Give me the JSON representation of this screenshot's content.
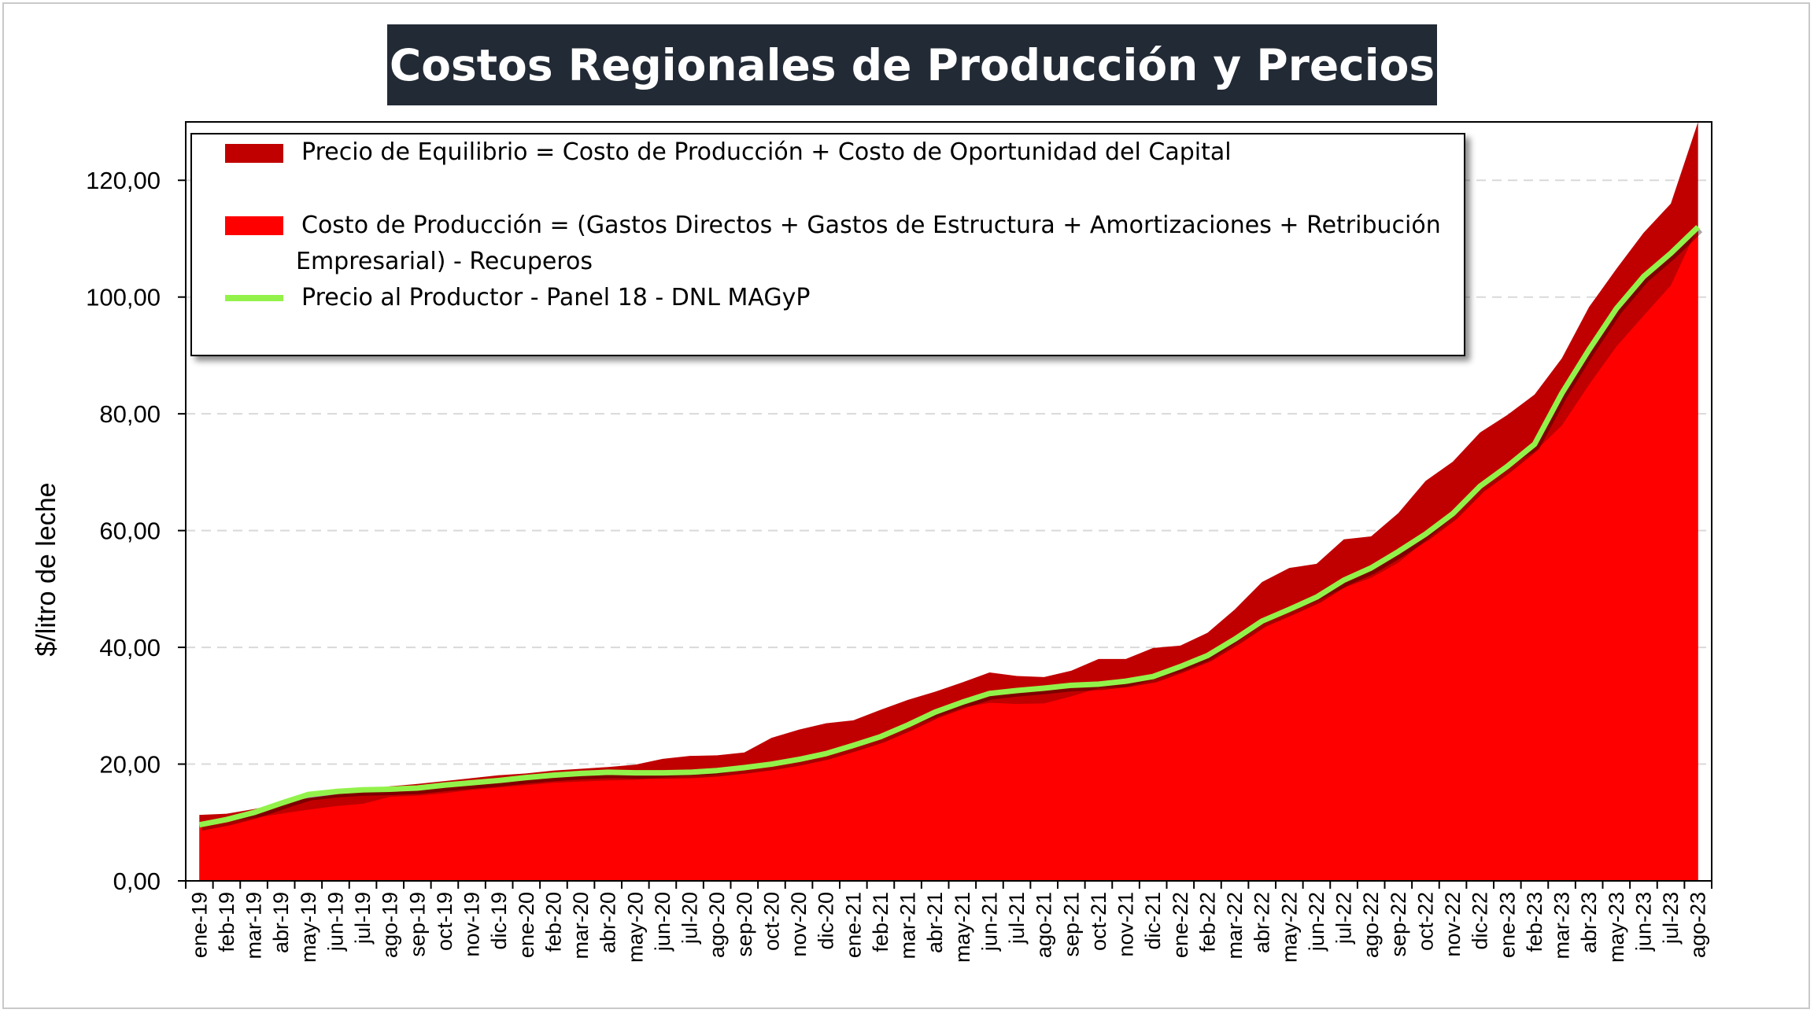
{
  "title": "Costos Regionales de Producción y Precios",
  "chart_data": {
    "type": "area",
    "ylabel": "$/litro de leche",
    "xlabel": "",
    "ylim": [
      0,
      130
    ],
    "yticks": [
      "0,00",
      "20,00",
      "40,00",
      "60,00",
      "80,00",
      "100,00",
      "120,00"
    ],
    "ytick_values": [
      0,
      20,
      40,
      60,
      80,
      100,
      120
    ],
    "grid": "horizontal dashed",
    "legend_position": "top-left inside",
    "categories": [
      "ene-19",
      "feb-19",
      "mar-19",
      "abr-19",
      "may-19",
      "jun-19",
      "jul-19",
      "ago-19",
      "sep-19",
      "oct-19",
      "nov-19",
      "dic-19",
      "ene-20",
      "feb-20",
      "mar-20",
      "abr-20",
      "may-20",
      "jun-20",
      "jul-20",
      "ago-20",
      "sep-20",
      "oct-20",
      "nov-20",
      "dic-20",
      "ene-21",
      "feb-21",
      "mar-21",
      "abr-21",
      "may-21",
      "jun-21",
      "jul-21",
      "ago-21",
      "sep-21",
      "oct-21",
      "nov-21",
      "dic-21",
      "ene-22",
      "feb-22",
      "mar-22",
      "abr-22",
      "may-22",
      "jun-22",
      "jul-22",
      "ago-22",
      "sep-22",
      "oct-22",
      "nov-22",
      "dic-22",
      "ene-23",
      "feb-23",
      "mar-23",
      "abr-23",
      "may-23",
      "jun-23",
      "jul-23",
      "ago-23"
    ],
    "series": [
      {
        "name": "Precio de Equilibrio = Costo de Producción + Costo de Oportunidad del Capital",
        "color": "#c00000",
        "values": [
          11.3,
          11.5,
          12.3,
          13.3,
          14.2,
          14.8,
          15.6,
          16.2,
          16.6,
          17.1,
          17.6,
          18.1,
          18.4,
          18.9,
          19.2,
          19.5,
          19.9,
          20.9,
          21.4,
          21.5,
          22,
          24.5,
          25.9,
          27.0,
          27.5,
          29.3,
          31,
          32.4,
          34,
          35.7,
          35.1,
          34.9,
          36.0,
          38.0,
          38.0,
          39.9,
          40.3,
          42.5,
          46.5,
          51.2,
          53.6,
          54.3,
          58.5,
          59.0,
          63.0,
          68.5,
          71.8,
          76.8,
          79.8,
          83.3,
          89.5,
          98.3,
          104.8,
          111.0,
          116.0,
          130.0
        ]
      },
      {
        "name": "Costo de Producción = (Gastos Directos + Gastos de Estructura + Amortizaciones + Retribución Empresarial) - Recuperos",
        "color": "#ff0000",
        "values": [
          9.8,
          10.1,
          10.8,
          11.5,
          12.2,
          12.8,
          13.2,
          14.4,
          14.6,
          15.0,
          15.6,
          16.0,
          16.4,
          16.8,
          17.0,
          17.2,
          17.3,
          17.7,
          18.0,
          18.2,
          19.1,
          20.0,
          21.0,
          22.2,
          23.4,
          24.8,
          26.4,
          28.0,
          29.7,
          30.5,
          30.3,
          30.4,
          31.6,
          33.0,
          33.2,
          34.4,
          35.8,
          37.6,
          40.6,
          43.9,
          46.0,
          47.9,
          50.2,
          51.9,
          54.5,
          58.3,
          62.2,
          67.5,
          71.0,
          73.5,
          78.0,
          85.0,
          91.5,
          96.8,
          102.0,
          112.0
        ]
      },
      {
        "name": "Precio al Productor - Panel 18 - DNL MAGyP",
        "color": "#92f24a",
        "values": [
          9.6,
          10.5,
          11.7,
          13.3,
          14.8,
          15.3,
          15.6,
          15.7,
          15.9,
          16.4,
          16.8,
          17.2,
          17.7,
          18.1,
          18.4,
          18.6,
          18.5,
          18.5,
          18.6,
          18.9,
          19.4,
          20.0,
          20.8,
          21.8,
          23.2,
          24.7,
          26.7,
          28.9,
          30.6,
          32.1,
          32.6,
          33.0,
          33.5,
          33.7,
          34.2,
          35.0,
          36.7,
          38.6,
          41.4,
          44.5,
          46.5,
          48.6,
          51.5,
          53.6,
          56.4,
          59.4,
          62.9,
          67.6,
          71.0,
          74.8,
          83.5,
          91.0,
          98.0,
          103.5,
          107.5,
          112.0
        ]
      }
    ]
  }
}
